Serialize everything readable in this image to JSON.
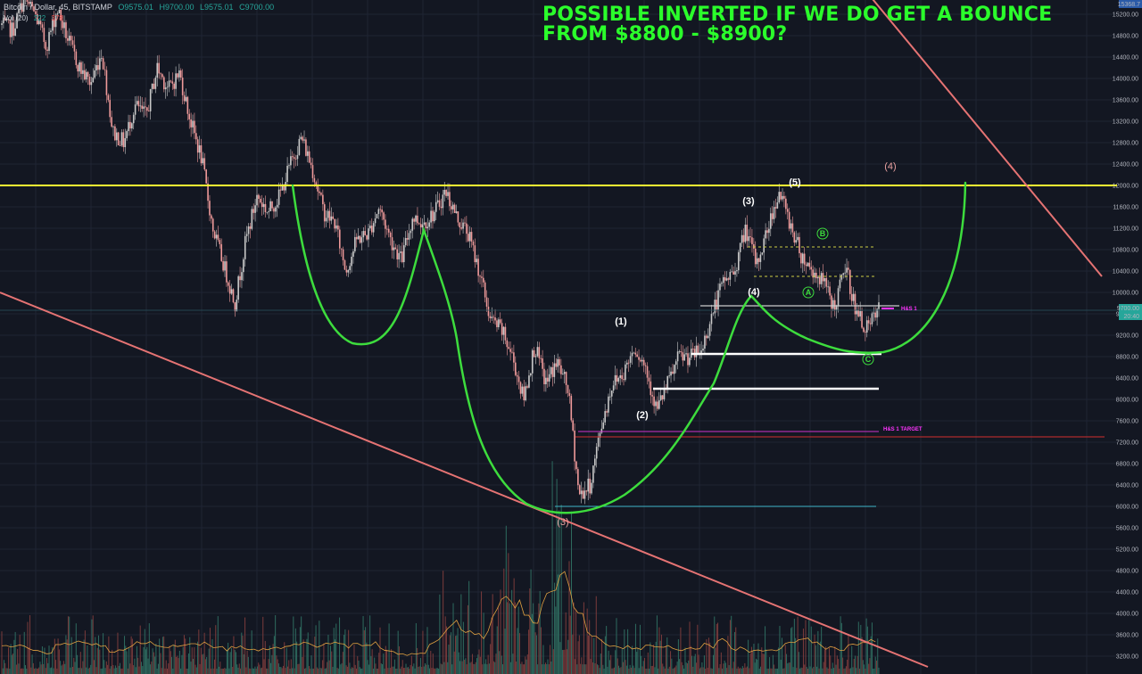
{
  "header": {
    "symbol": "Bitcoin / Dollar, 45, BITSTAMP",
    "open": "O9575.01",
    "high": "H9700.00",
    "low": "L9575.01",
    "close": "C9700.00"
  },
  "volume_legend": {
    "label": "Vol (20)",
    "value_a": "222",
    "value_b": "378"
  },
  "annotation": {
    "line1": "POSSIBLE INVERTED IF WE DO GET A BOUNCE",
    "line2": "FROM $8800 - $8900?"
  },
  "chart_data": {
    "type": "candlestick",
    "symbol": "Bitcoin / Dollar",
    "interval": "45",
    "exchange": "BITSTAMP",
    "y_axis": {
      "position": "right",
      "scale": "linear",
      "range": [
        3000,
        15800
      ],
      "ticks": [
        3200,
        3600,
        4000,
        4400,
        4800,
        5200,
        5600,
        6000,
        6400,
        6800,
        7200,
        7600,
        8000,
        8400,
        8800,
        9200,
        9600,
        10000,
        10400,
        10800,
        11200,
        11600,
        12000,
        12400,
        12800,
        13200,
        13600,
        14000,
        14400,
        14800,
        15200,
        15600
      ],
      "top_label": "15368.7",
      "last_price_label": "9700.00",
      "countdown_label": "20:40"
    },
    "grid": true,
    "background": "#131722",
    "price_path": [
      15000,
      14900,
      15500,
      15200,
      14600,
      15300,
      14700,
      14200,
      13900,
      14500,
      13000,
      12800,
      13500,
      13300,
      14200,
      13800,
      14100,
      13200,
      12500,
      11200,
      10500,
      9800,
      11000,
      11800,
      11500,
      11800,
      12400,
      12900,
      12300,
      11500,
      11300,
      10400,
      11000,
      11100,
      11600,
      11000,
      10600,
      11400,
      11300,
      11500,
      11900,
      11400,
      11100,
      10400,
      9500,
      9300,
      8800,
      8000,
      9000,
      8300,
      8700,
      8200,
      6200,
      6400,
      7500,
      8300,
      8500,
      9000,
      8600,
      7800,
      8300,
      8800,
      8800,
      8900,
      9600,
      10200,
      10400,
      11200,
      10500,
      11200,
      11900,
      11300,
      10700,
      10400,
      10200,
      9700,
      10500,
      9600,
      9300,
      9700
    ],
    "horizontal_levels": [
      {
        "price": 12000,
        "color": "#ffff33",
        "note": "resistance"
      },
      {
        "price": 9750,
        "color": "#cccccc",
        "note": "neckline"
      },
      {
        "price": 8850,
        "color": "#ffffff",
        "note": "support"
      },
      {
        "price": 8200,
        "color": "#ffffff",
        "note": "support"
      },
      {
        "price": 7400,
        "color": "#cc33cc",
        "note": "H&S target"
      },
      {
        "price": 7300,
        "color": "#d32f2f",
        "note": "level"
      },
      {
        "price": 6000,
        "color": "#3fb6c9",
        "note": "low"
      },
      {
        "price": 10850,
        "color": "#cccc44",
        "note": "dashed"
      },
      {
        "price": 10300,
        "color": "#cccc44",
        "note": "dashed"
      }
    ],
    "level_labels": [
      {
        "text": "H&S 1",
        "price": 9700
      },
      {
        "text": "H&S 1 TARGET",
        "price": 7450
      }
    ],
    "wave_labels": [
      {
        "text": "(3)",
        "price": 5650,
        "color": "pink"
      },
      {
        "text": "(1)",
        "price": 9400,
        "color": "white"
      },
      {
        "text": "(2)",
        "price": 7650,
        "color": "white"
      },
      {
        "text": "(3)",
        "price": 11650,
        "color": "white"
      },
      {
        "text": "(4)",
        "price": 9950,
        "color": "white"
      },
      {
        "text": "(5)",
        "price": 12000,
        "color": "white"
      },
      {
        "text": "(4)",
        "price": 12300,
        "color": "pink"
      },
      {
        "text": "A",
        "price": 9950,
        "color": "green"
      },
      {
        "text": "B",
        "price": 11050,
        "color": "green"
      },
      {
        "text": "C",
        "price": 8700,
        "color": "green"
      }
    ],
    "channel_lines": {
      "color": "#e57373",
      "upper": [
        [
          14500,
          16200
        ],
        [
          19000,
          10300
        ]
      ],
      "lower": [
        [
          0,
          10000
        ],
        [
          16000,
          3000
        ]
      ]
    },
    "pattern": "inverse head and shoulders (green curve)",
    "pattern_color": "#3ddc3d"
  }
}
